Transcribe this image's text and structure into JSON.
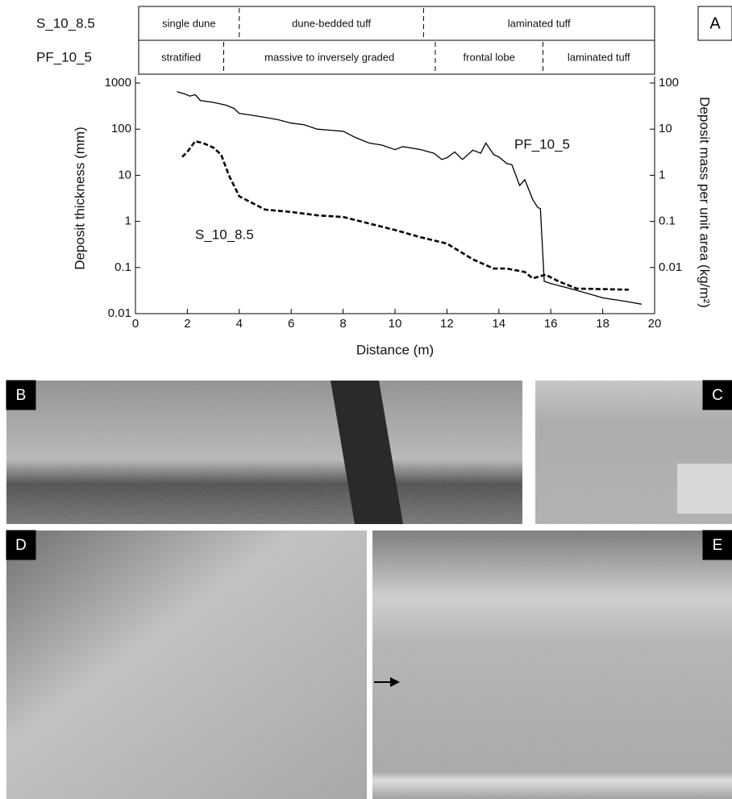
{
  "chart_data": {
    "type": "line",
    "log_scale": true,
    "xlabel": "Distance (m)",
    "ylabel": "Deposit thickness (mm)",
    "y2label": "Deposit mass per unit area (kg/m²)",
    "xlim": [
      0,
      20
    ],
    "xticks": [
      0,
      2,
      4,
      6,
      8,
      10,
      12,
      14,
      16,
      18,
      20
    ],
    "ylim": [
      0.01,
      1000
    ],
    "yticks": [
      0.01,
      0.1,
      1,
      10,
      100,
      1000
    ],
    "y2lim": [
      0.001,
      100
    ],
    "y2ticks": [
      0.01,
      0.1,
      1,
      10,
      100
    ],
    "series": [
      {
        "name": "PF_10_5",
        "color": "#000000",
        "dash": false,
        "x": [
          1.6,
          1.9,
          2.1,
          2.3,
          2.5,
          3,
          3.5,
          3.8,
          4,
          4.5,
          5,
          5.5,
          6,
          6.5,
          7,
          7.5,
          8,
          8.5,
          9,
          9.5,
          10,
          10.3,
          11,
          11.5,
          11.8,
          12,
          12.3,
          12.6,
          13,
          13.3,
          13.5,
          13.8,
          14,
          14.3,
          14.5,
          14.8,
          15,
          15.3,
          15.5,
          15.6,
          15.75,
          16,
          17,
          18,
          19,
          19.5
        ],
        "values": [
          650,
          580,
          520,
          560,
          420,
          380,
          330,
          280,
          220,
          200,
          180,
          160,
          135,
          125,
          100,
          95,
          90,
          65,
          50,
          45,
          36,
          42,
          36,
          30,
          22,
          24,
          32,
          22,
          35,
          30,
          50,
          28,
          25,
          18,
          17,
          6,
          8,
          3,
          2,
          1.9,
          0.05,
          0.045,
          0.032,
          0.022,
          0.018,
          0.016
        ]
      },
      {
        "name": "S_10_8.5",
        "color": "#000000",
        "dash": true,
        "x": [
          1.8,
          2,
          2.3,
          2.6,
          3,
          3.3,
          3.6,
          4,
          4.5,
          5,
          6,
          7,
          8,
          9,
          10,
          11,
          12,
          13,
          13.8,
          14.3,
          15,
          15.3,
          15.8,
          16.3,
          17,
          18,
          19
        ],
        "values": [
          25,
          32,
          55,
          50,
          40,
          28,
          10,
          3.5,
          2.5,
          1.8,
          1.6,
          1.35,
          1.25,
          0.9,
          0.65,
          0.45,
          0.33,
          0.15,
          0.095,
          0.095,
          0.08,
          0.058,
          0.07,
          0.05,
          0.035,
          0.034,
          0.033
        ]
      }
    ],
    "zones": [
      {
        "name": "S_10_8.5",
        "segments": [
          {
            "label": "single dune",
            "start": 0,
            "end": 4
          },
          {
            "label": "dune-bedded tuff",
            "start": 4,
            "end": 11.1
          },
          {
            "label": "laminated tuff",
            "start": 11.1,
            "end": 20
          }
        ]
      },
      {
        "name": "PF_10_5",
        "segments": [
          {
            "label": "stratified",
            "start": 0,
            "end": 3.4
          },
          {
            "label": "massive to inversely graded",
            "start": 3.4,
            "end": 11.55
          },
          {
            "label": "frontal lobe",
            "start": 11.55,
            "end": 15.7
          },
          {
            "label": "laminated tuff",
            "start": 15.7,
            "end": 20
          }
        ]
      }
    ]
  },
  "panel_labels": [
    "A",
    "B",
    "C",
    "D",
    "E"
  ]
}
